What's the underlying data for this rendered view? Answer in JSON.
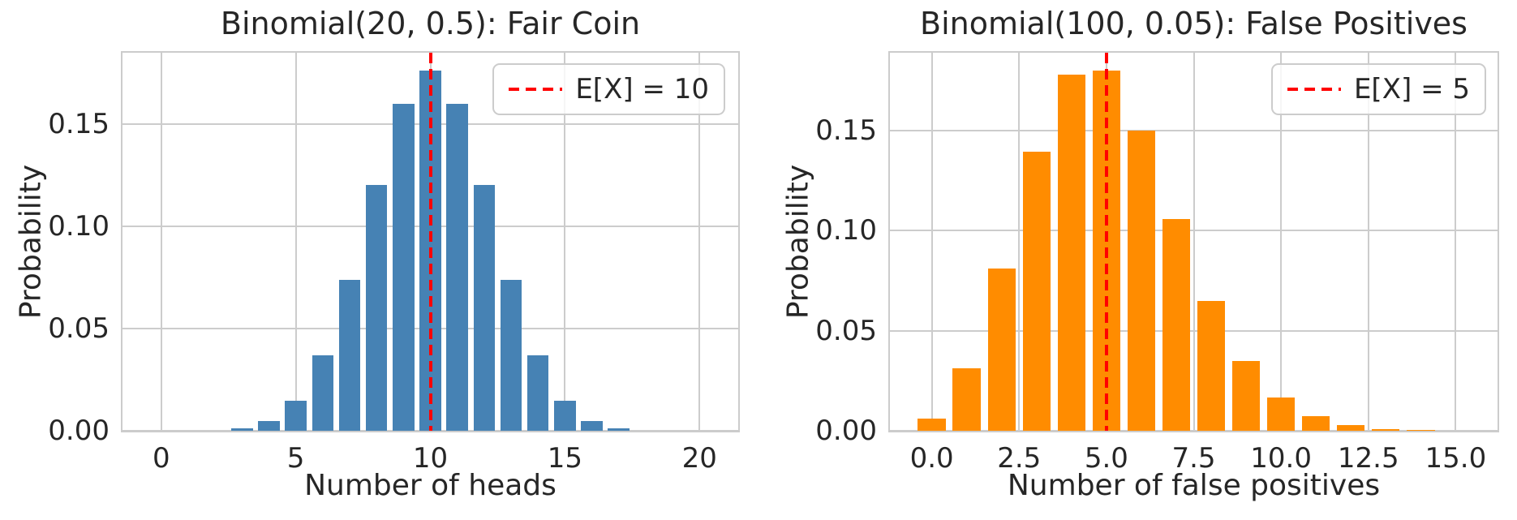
{
  "colors": {
    "background": "#ffffff",
    "grid": "#cccccc",
    "spine": "#cccccc",
    "text": "#262626",
    "blue_bars": "#4682b4",
    "orange_bars": "#ff8c00",
    "mean_line_red": "#ff0000"
  },
  "chart_data": [
    {
      "type": "bar",
      "title": "Binomial(20, 0.5): Fair Coin",
      "xlabel": "Number of heads",
      "ylabel": "Probability",
      "bar_color": "#4682b4",
      "bar_width": 0.8,
      "grid": true,
      "xlim": [
        -1.44,
        21.44
      ],
      "ylim": [
        0,
        0.185
      ],
      "x": [
        0,
        1,
        2,
        3,
        4,
        5,
        6,
        7,
        8,
        9,
        10,
        11,
        12,
        13,
        14,
        15,
        16,
        17,
        18,
        19,
        20
      ],
      "values": [
        1e-06,
        1.9e-05,
        0.000181,
        0.001087,
        0.004621,
        0.014786,
        0.036964,
        0.073929,
        0.120134,
        0.160179,
        0.176197,
        0.160179,
        0.120134,
        0.073929,
        0.036964,
        0.014786,
        0.004621,
        0.001087,
        0.000181,
        1.9e-05,
        1e-06
      ],
      "xticks": {
        "values": [
          0,
          5,
          10,
          15,
          20
        ],
        "labels": [
          "0",
          "5",
          "10",
          "15",
          "20"
        ]
      },
      "yticks": {
        "values": [
          0,
          0.05,
          0.1,
          0.15
        ],
        "labels": [
          "0.00",
          "0.05",
          "0.10",
          "0.15"
        ]
      },
      "mean_line": {
        "x": 10,
        "color": "#ff0000",
        "style": "dashed"
      },
      "legend": {
        "position": "upper right",
        "label": "E[X] = 10"
      }
    },
    {
      "type": "bar",
      "title": "Binomial(100, 0.05): False Positives",
      "xlabel": "Number of false positives",
      "ylabel": "Probability",
      "bar_color": "#ff8c00",
      "bar_width": 0.8,
      "grid": true,
      "xlim": [
        -1.2,
        16.2
      ],
      "ylim": [
        0,
        0.189
      ],
      "x": [
        0,
        1,
        2,
        3,
        4,
        5,
        6,
        7,
        8,
        9,
        10,
        11,
        12,
        13,
        14,
        15
      ],
      "values": [
        0.005921,
        0.031164,
        0.081182,
        0.139576,
        0.178143,
        0.180018,
        0.150015,
        0.106031,
        0.064874,
        0.034903,
        0.016717,
        0.007199,
        0.00281,
        0.001001,
        0.000327,
        9.9e-05
      ],
      "xticks": {
        "values": [
          0,
          2.5,
          5,
          7.5,
          10,
          12.5,
          15
        ],
        "labels": [
          "0.0",
          "2.5",
          "5.0",
          "7.5",
          "10.0",
          "12.5",
          "15.0"
        ]
      },
      "yticks": {
        "values": [
          0,
          0.05,
          0.1,
          0.15
        ],
        "labels": [
          "0.00",
          "0.05",
          "0.10",
          "0.15"
        ]
      },
      "mean_line": {
        "x": 5,
        "color": "#ff0000",
        "style": "dashed"
      },
      "legend": {
        "position": "upper right",
        "label": "E[X] = 5"
      }
    }
  ]
}
